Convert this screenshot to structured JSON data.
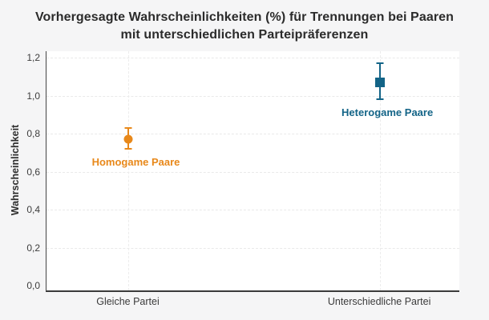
{
  "title": {
    "line1": "Vorhergesagte Wahrscheinlichkeiten (%) für Trennungen bei Paaren",
    "line2": "mit unterschiedlichen Parteipräferenzen"
  },
  "chart_data": {
    "type": "scatter",
    "title": "Vorhergesagte Wahrscheinlichkeiten (%) für Trennungen bei Paaren mit unterschiedlichen Parteipräferenzen",
    "xlabel": "",
    "ylabel": "Wahrscheinlichkeit",
    "ylim": [
      0.0,
      1.2
    ],
    "grid": "horizontal and vertical dashed light-gray gridlines",
    "legend_position": "labels next to points",
    "yticks": [
      {
        "value": 1.2,
        "label": "1,2"
      },
      {
        "value": 1.0,
        "label": "1,0"
      },
      {
        "value": 0.8,
        "label": "0,8"
      },
      {
        "value": 0.6,
        "label": "0,6"
      },
      {
        "value": 0.4,
        "label": "0,4"
      },
      {
        "value": 0.2,
        "label": "0,2"
      },
      {
        "value": 0.0,
        "label": "0,0"
      }
    ],
    "categories": [
      "Gleiche Partei",
      "Unterschiedliche Partei"
    ],
    "series": [
      {
        "name": "Homogame Paare",
        "category": "Gleiche Partei",
        "value": 0.77,
        "ci_low": 0.72,
        "ci_high": 0.83,
        "marker": "circle",
        "color": "#e8881a",
        "x_frac": 0.199
      },
      {
        "name": "Heterogame Paare",
        "category": "Unterschiedliche Partei",
        "value": 1.07,
        "ci_low": 0.98,
        "ci_high": 1.17,
        "marker": "square",
        "color": "#136487",
        "x_frac": 0.808
      }
    ]
  },
  "colors": {
    "background": "#f5f5f6",
    "plot_background": "#ffffff",
    "axis": "#3e3e3e",
    "grid": "#e9e9e9",
    "title_text": "#2b2b2b",
    "tick_text": "#3c3c3c"
  }
}
